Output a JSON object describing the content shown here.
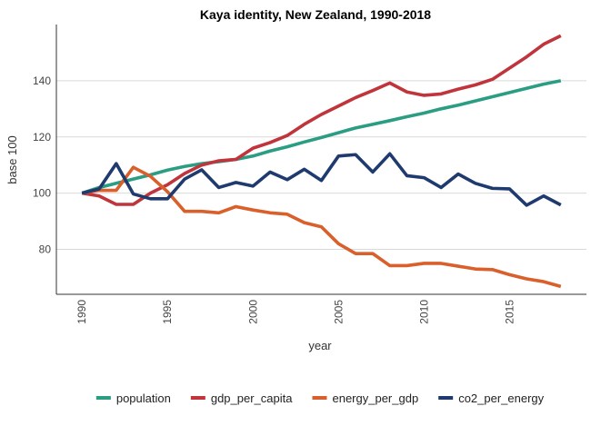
{
  "chart_data": {
    "type": "line",
    "title": "Kaya identity, New Zealand, 1990-2018",
    "xlabel": "year",
    "ylabel": "base 100",
    "xlim": [
      1988.5,
      2019.5
    ],
    "ylim": [
      64,
      160
    ],
    "x_ticks": [
      1990,
      1995,
      2000,
      2005,
      2010,
      2015
    ],
    "y_ticks": [
      80,
      100,
      120,
      140
    ],
    "grid": "horizontal major lines",
    "legend_position": "bottom",
    "x": [
      1990,
      1991,
      1992,
      1993,
      1994,
      1995,
      1996,
      1997,
      1998,
      1999,
      2000,
      2001,
      2002,
      2003,
      2004,
      2005,
      2006,
      2007,
      2008,
      2009,
      2010,
      2011,
      2012,
      2013,
      2014,
      2015,
      2016,
      2017,
      2018
    ],
    "series": [
      {
        "name": "population",
        "color": "#2a9d83",
        "values": [
          100,
          102,
          103.5,
          105,
          106.5,
          108.2,
          109.5,
          110.5,
          111.2,
          112,
          113.2,
          115,
          116.5,
          118.2,
          119.8,
          121.5,
          123.2,
          124.5,
          125.8,
          127.2,
          128.5,
          130,
          131.3,
          132.8,
          134.3,
          135.8,
          137.3,
          138.8,
          140
        ]
      },
      {
        "name": "gdp_per_capita",
        "color": "#c0353c",
        "values": [
          100,
          99,
          96,
          96,
          100,
          103,
          107,
          110,
          111.5,
          112,
          116,
          118,
          120.5,
          124.5,
          128,
          131,
          134,
          136.5,
          139.2,
          136,
          134.8,
          135.3,
          137,
          138.5,
          140.5,
          144.5,
          148.5,
          153,
          156
        ]
      },
      {
        "name": "energy_per_gdp",
        "color": "#d95f2b",
        "values": [
          100,
          101,
          101,
          109.2,
          106,
          100.5,
          93.5,
          93.5,
          93,
          95.2,
          94,
          93,
          92.5,
          89.5,
          88,
          82,
          78.5,
          78.5,
          74.2,
          74.2,
          75,
          75,
          74,
          73,
          72.8,
          71,
          69.5,
          68.5,
          66.8
        ]
      },
      {
        "name": "co2_per_energy",
        "color": "#1f3a6e",
        "values": [
          100,
          101.5,
          110.5,
          99.7,
          98,
          98,
          105,
          108.3,
          102,
          103.8,
          102.5,
          107.5,
          104.8,
          108.5,
          104.5,
          113.2,
          113.7,
          107.5,
          114,
          106.2,
          105.5,
          102,
          106.8,
          103.5,
          101.7,
          101.5,
          95.7,
          99,
          95.8
        ]
      }
    ]
  }
}
